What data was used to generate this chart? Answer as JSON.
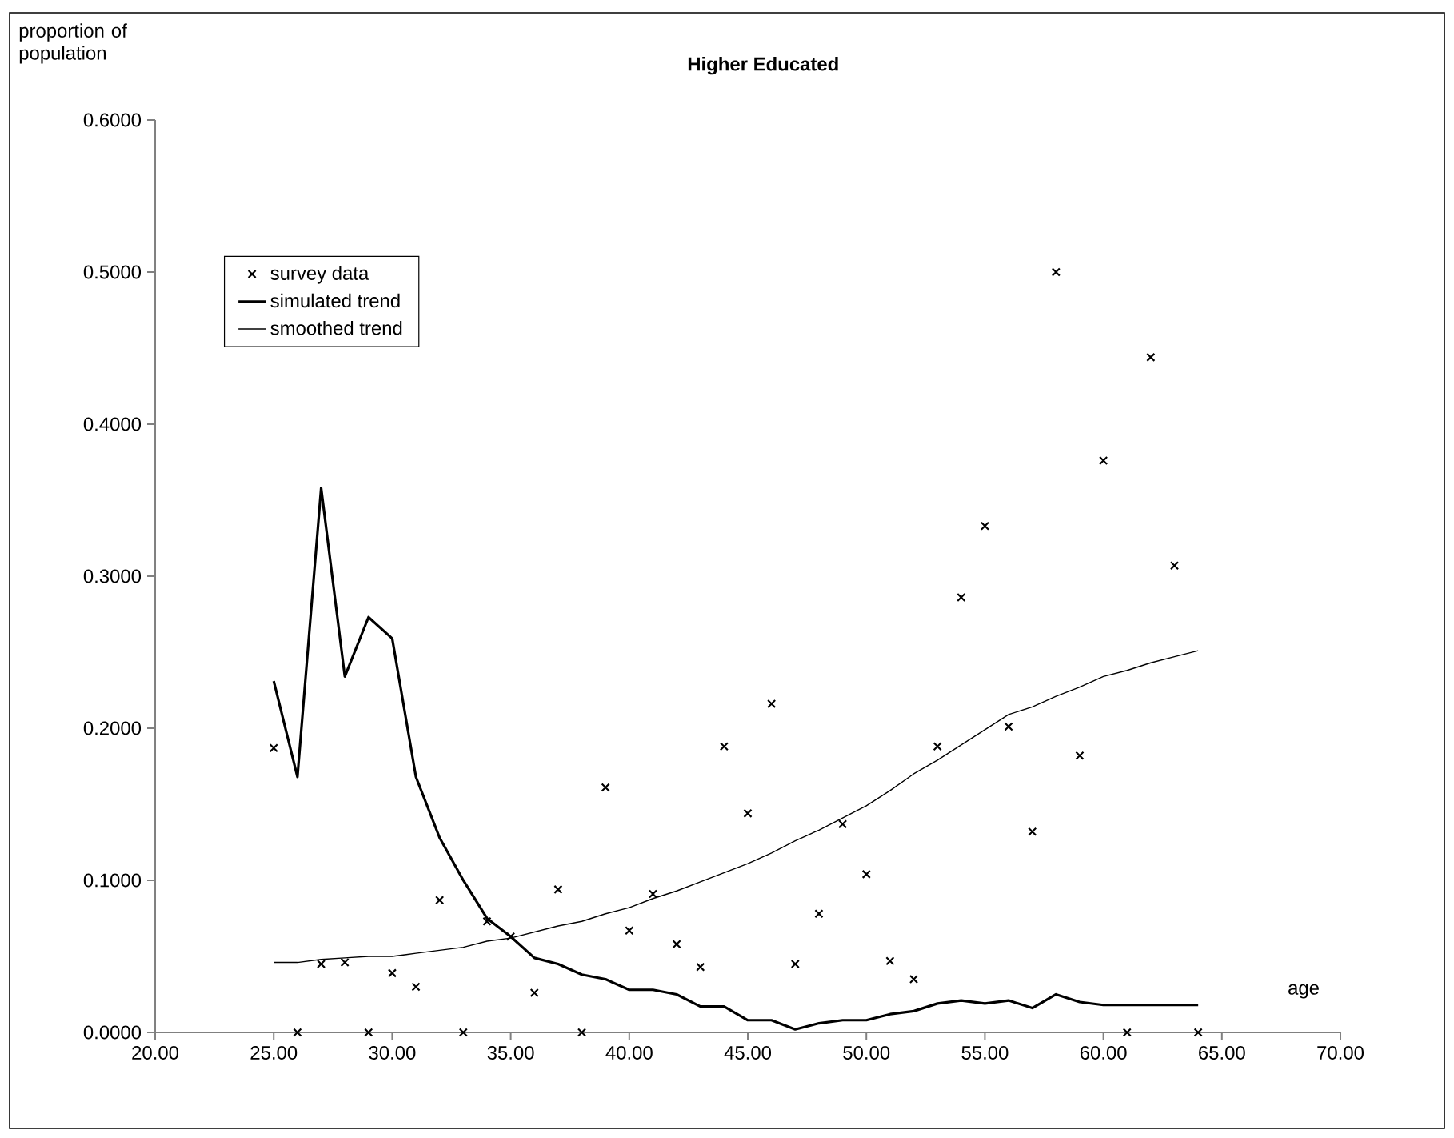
{
  "chart_data": {
    "type": "line",
    "title": "Higher Educated",
    "xlabel": "age",
    "ylabel": "proportion of population",
    "x": [
      25,
      26,
      27,
      28,
      29,
      30,
      31,
      32,
      33,
      34,
      35,
      36,
      37,
      38,
      39,
      40,
      41,
      42,
      43,
      44,
      45,
      46,
      47,
      48,
      49,
      50,
      51,
      52,
      53,
      54,
      55,
      56,
      57,
      58,
      59,
      60,
      61,
      62,
      63,
      64
    ],
    "series": [
      {
        "name": "survey data",
        "type": "scatter",
        "color": "#000000",
        "marker": "cross",
        "values": [
          0.187,
          0,
          0.045,
          0.046,
          0,
          0.039,
          0.03,
          0.087,
          0,
          0.073,
          0.063,
          0.026,
          0.094,
          0,
          0.161,
          0.067,
          0.091,
          0.058,
          0.043,
          0.188,
          0.144,
          0.216,
          0.045,
          0.078,
          0.137,
          0.104,
          0.047,
          0.035,
          0.188,
          0.286,
          0.333,
          0.201,
          0.132,
          0.5,
          0.182,
          0.376,
          0,
          0.444,
          0.307,
          0
        ]
      },
      {
        "name": "simulated trend",
        "color": "#000000",
        "line_style": "solid",
        "values": [
          0.231,
          0.168,
          0.358,
          0.234,
          0.273,
          0.259,
          0.168,
          0.128,
          0.1,
          0.075,
          0.063,
          0.049,
          0.045,
          0.038,
          0.035,
          0.028,
          0.028,
          0.025,
          0.017,
          0.017,
          0.008,
          0.008,
          0.002,
          0.006,
          0.008,
          0.008,
          0.012,
          0.014,
          0.019,
          0.021,
          0.019,
          0.021,
          0.016,
          0.025,
          0.02,
          0.018,
          0.018,
          0.018,
          0.018,
          0.018
        ]
      },
      {
        "name": "smoothed trend",
        "color": "#000000",
        "line_style": "solid",
        "values": [
          0.046,
          0.046,
          0.048,
          0.049,
          0.05,
          0.05,
          0.052,
          0.054,
          0.056,
          0.06,
          0.062,
          0.066,
          0.07,
          0.073,
          0.078,
          0.082,
          0.088,
          0.093,
          0.099,
          0.105,
          0.111,
          0.118,
          0.126,
          0.133,
          0.141,
          0.149,
          0.159,
          0.17,
          0.179,
          0.189,
          0.199,
          0.209,
          0.214,
          0.221,
          0.227,
          0.234,
          0.238,
          0.243,
          0.247,
          0.251
        ]
      }
    ],
    "xlim": [
      20,
      70
    ],
    "ylim": [
      0,
      0.6
    ],
    "xticks": [
      {
        "value": 20,
        "label": "20.00"
      },
      {
        "value": 25,
        "label": "25.00"
      },
      {
        "value": 30,
        "label": "30.00"
      },
      {
        "value": 35,
        "label": "35.00"
      },
      {
        "value": 40,
        "label": "40.00"
      },
      {
        "value": 45,
        "label": "45.00"
      },
      {
        "value": 50,
        "label": "50.00"
      },
      {
        "value": 55,
        "label": "55.00"
      },
      {
        "value": 60,
        "label": "60.00"
      },
      {
        "value": 65,
        "label": "65.00"
      },
      {
        "value": 70,
        "label": "70.00"
      }
    ],
    "yticks": [
      {
        "value": 0,
        "label": "0.0000"
      },
      {
        "value": 0.1,
        "label": "0.1000"
      },
      {
        "value": 0.2,
        "label": "0.2000"
      },
      {
        "value": 0.3,
        "label": "0.3000"
      },
      {
        "value": 0.4,
        "label": "0.4000"
      },
      {
        "value": 0.5,
        "label": "0.5000"
      },
      {
        "value": 0.6,
        "label": "0.6000"
      }
    ],
    "grid": false,
    "legend": "top left"
  }
}
